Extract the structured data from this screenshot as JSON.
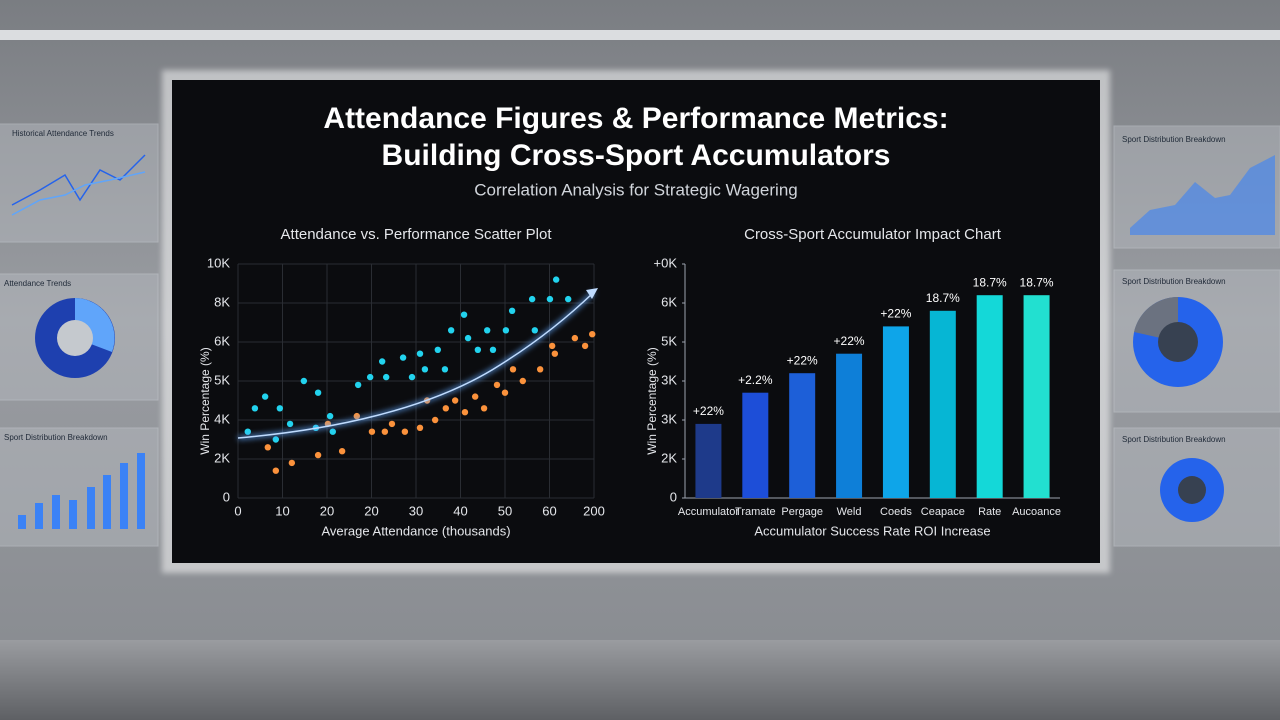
{
  "title": [
    "Attendance Figures & Performance Metrics:",
    "Building Cross-Sport Accumulators"
  ],
  "subtitle": "Correlation Analysis for Strategic Wagering",
  "side_panels": [
    "Historical Attendance Trends",
    "Attendance Trends",
    "Sport Distribution Breakdown",
    "Sport Distribution Breakdown",
    "Sport Distribution Breakdown",
    "Sport Distribution Breakdown"
  ],
  "chart_data": [
    {
      "type": "scatter",
      "title": "Attendance vs. Performance Scatter Plot",
      "xlabel": "Average Attendance (thousands)",
      "ylabel": "Win Percentage (%)",
      "xlim": [
        0,
        80
      ],
      "xticks": [
        0,
        10,
        20,
        {
          "value": 30,
          "label": "20"
        },
        {
          "value": 40,
          "label": "30"
        },
        {
          "value": 50,
          "label": "40"
        },
        {
          "value": 60,
          "label": "50"
        },
        {
          "value": 70,
          "label": "60"
        },
        {
          "value": 80,
          "label": "200"
        }
      ],
      "ylim": [
        0,
        6
      ],
      "yticks": [
        0,
        {
          "value": 1,
          "label": "2K"
        },
        {
          "value": 2,
          "label": "4K"
        },
        {
          "value": 3,
          "label": "5K"
        },
        {
          "value": 4,
          "label": "6K"
        },
        {
          "value": 5,
          "label": "8K"
        },
        {
          "value": 6,
          "label": "10K"
        }
      ],
      "grid": true,
      "series": [
        {
          "color": "#22d3ee",
          "x": [
            2.2,
            3.8,
            6.1,
            9.4,
            8.5,
            11.7,
            14.8,
            18.0,
            17.5,
            20.7,
            21.3,
            27.0,
            29.7,
            32.4,
            33.3,
            37.1,
            39.1,
            40.9,
            42.0,
            44.9,
            46.5,
            47.9,
            50.8,
            51.7,
            53.9,
            56.0,
            57.3,
            60.2,
            61.6,
            66.1,
            66.7,
            70.1,
            71.5,
            74.2
          ],
          "values": [
            1.7,
            2.3,
            2.6,
            2.3,
            1.5,
            1.9,
            3.0,
            2.7,
            1.8,
            2.1,
            1.7,
            2.9,
            3.1,
            3.5,
            3.1,
            3.6,
            3.1,
            3.7,
            3.3,
            3.8,
            3.3,
            4.3,
            4.7,
            4.1,
            3.8,
            4.3,
            3.8,
            4.3,
            4.8,
            5.1,
            4.3,
            5.1,
            5.6,
            5.1
          ]
        },
        {
          "color": "#fb923c",
          "x": [
            6.7,
            8.5,
            12.1,
            18.0,
            20.2,
            23.4,
            26.7,
            30.1,
            33.0,
            34.6,
            37.5,
            40.9,
            42.5,
            44.3,
            46.7,
            48.8,
            51.0,
            53.3,
            55.3,
            58.2,
            60.0,
            61.8,
            64.0,
            67.9,
            70.6,
            71.2,
            75.7,
            78.0,
            79.6
          ],
          "values": [
            1.3,
            0.7,
            0.9,
            1.1,
            1.9,
            1.2,
            2.1,
            1.7,
            1.7,
            1.9,
            1.7,
            1.8,
            2.5,
            2.0,
            2.3,
            2.5,
            2.2,
            2.6,
            2.3,
            2.9,
            2.7,
            3.3,
            3.0,
            3.3,
            3.9,
            3.7,
            4.1,
            3.9,
            4.2
          ]
        }
      ]
    },
    {
      "type": "bar",
      "title": "Cross-Sport Accumulator Impact Chart",
      "xlabel": "Accumulator Success Rate   ROI Increase",
      "ylabel": "Win Percentage (%)",
      "categories": [
        "Accumulator",
        "Tramate",
        "Pergage",
        "Weld",
        "Coeds",
        "Ceapace",
        "Rate",
        "Aucoance"
      ],
      "values": [
        1.9,
        2.7,
        3.2,
        3.7,
        4.4,
        4.8,
        5.2,
        5.2
      ],
      "value_labels": [
        "+22%",
        "+2.2%",
        "+22%",
        "+22%",
        "+22%",
        "18.7%",
        "18.7%",
        "18.7%"
      ],
      "colors": [
        "#1e3a8a",
        "#1d4ed8",
        "#1d5fd8",
        "#0e7fd8",
        "#0ea5e9",
        "#06b6d4",
        "#14d8d8",
        "#22e0d0"
      ],
      "ylim": [
        0,
        6
      ],
      "yticks": [
        0,
        {
          "value": 1,
          "label": "2K"
        },
        {
          "value": 2,
          "label": "3K"
        },
        {
          "value": 3,
          "label": "3K"
        },
        {
          "value": 4,
          "label": "5K"
        },
        {
          "value": 5,
          "label": "6K"
        },
        {
          "value": 6,
          "label": "+0K"
        }
      ],
      "grid": false
    }
  ]
}
